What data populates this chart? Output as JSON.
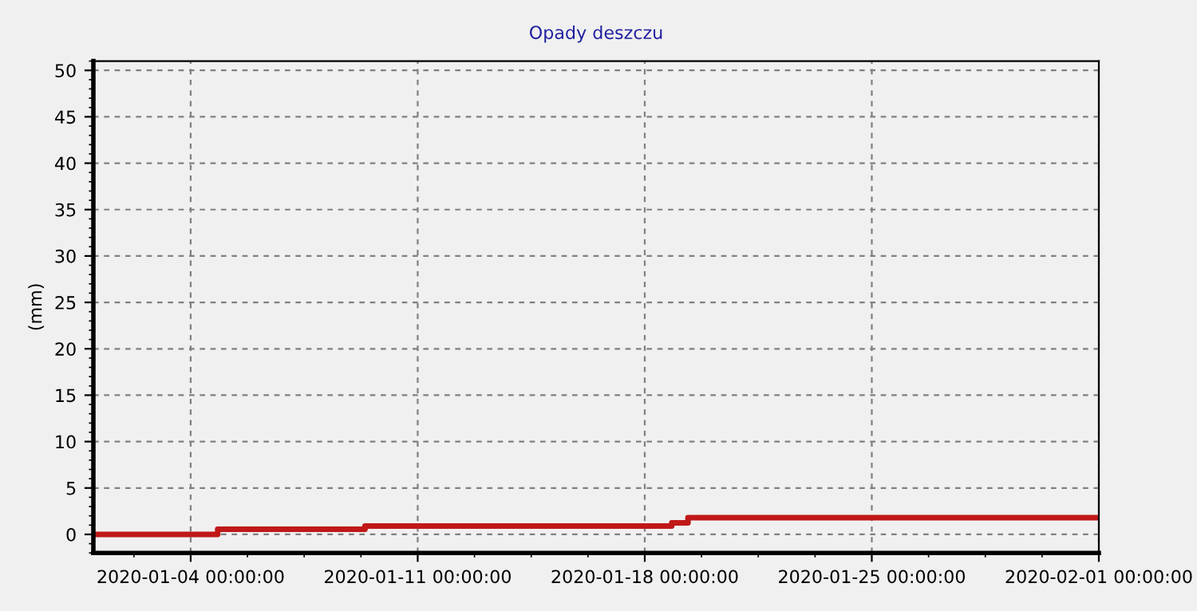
{
  "chart_data": {
    "type": "step",
    "title": "Opady deszczu",
    "ylabel": "(mm)",
    "x": [
      "2020-01-01T00:00",
      "2020-01-04T20:00",
      "2020-01-09T09:00",
      "2020-01-18T20:00",
      "2020-01-19T08:00",
      "2020-02-01T00:00"
    ],
    "values": [
      0,
      0.55,
      0.9,
      1.25,
      1.8,
      1.8
    ],
    "color": "#c01818",
    "xlim": [
      "2020-01-01T00:00",
      "2020-02-01T00:00"
    ],
    "xticks": [
      {
        "value": "2020-01-04T00:00",
        "label": "2020-01-04 00:00:00"
      },
      {
        "value": "2020-01-11T00:00",
        "label": "2020-01-11 00:00:00"
      },
      {
        "value": "2020-01-18T00:00",
        "label": "2020-01-18 00:00:00"
      },
      {
        "value": "2020-01-25T00:00",
        "label": "2020-01-25 00:00:00"
      },
      {
        "value": "2020-02-01T00:00",
        "label": "2020-02-01 00:00:00"
      }
    ],
    "ylim": [
      -2,
      51
    ],
    "yticks": [
      0,
      5,
      10,
      15,
      20,
      25,
      30,
      35,
      40,
      45,
      50
    ],
    "grid": true
  }
}
